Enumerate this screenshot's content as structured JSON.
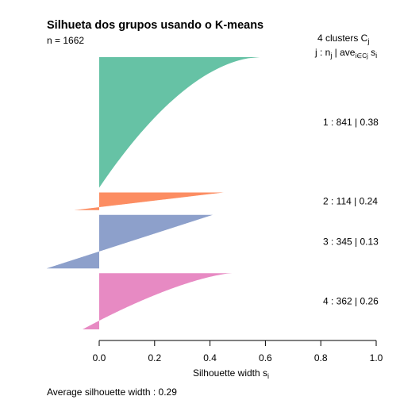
{
  "chart_data": {
    "type": "silhouette",
    "title": "Silhueta dos grupos usando o K-means",
    "n_label": "n = 1662",
    "n": 1662,
    "header_line1": "4  clusters  C",
    "header_line1_sub": "j",
    "header_line2_prefix": "j :  n",
    "header_line2_sub1": "j",
    "header_line2_mid": " | ave",
    "header_line2_sub2": "i∈Cj",
    "header_line2_end": "  s",
    "header_line2_sub3": "i",
    "xlabel": "Silhouette width s",
    "xlabel_sub": "i",
    "xlim": [
      0,
      1
    ],
    "x_ticks": [
      0.0,
      0.2,
      0.4,
      0.6,
      0.8,
      1.0
    ],
    "x_tick_labels": [
      "0.0",
      "0.2",
      "0.4",
      "0.6",
      "0.8",
      "1.0"
    ],
    "footer": "Average silhouette width :  0.29",
    "average_width": 0.29,
    "clusters": [
      {
        "id": 1,
        "n": 841,
        "ave": 0.38,
        "label": "1 :   841  |  0.38",
        "color": "#66C2A5",
        "max": 0.58,
        "min": 0.0,
        "shape_power": 0.55
      },
      {
        "id": 2,
        "n": 114,
        "ave": 0.24,
        "label": "2 :   114  |  0.24",
        "color": "#FC8D62",
        "max": 0.45,
        "min": -0.09,
        "shape_power": 1.0
      },
      {
        "id": 3,
        "n": 345,
        "ave": 0.13,
        "label": "3 :   345  |  0.13",
        "color": "#8DA0CB",
        "max": 0.41,
        "min": -0.19,
        "shape_power": 1.0
      },
      {
        "id": 4,
        "n": 362,
        "ave": 0.26,
        "label": "4 :   362  |  0.26",
        "color": "#E78AC3",
        "max": 0.48,
        "min": -0.06,
        "shape_power": 0.7
      }
    ]
  }
}
